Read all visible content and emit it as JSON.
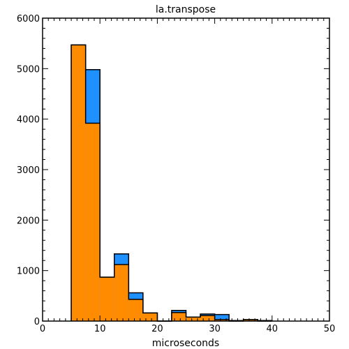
{
  "chart_data": {
    "type": "bar",
    "title": "la.transpose",
    "xlabel": "microseconds",
    "ylabel": "",
    "xlim": [
      0,
      50
    ],
    "ylim": [
      0,
      6000
    ],
    "xticks": [
      0,
      10,
      20,
      30,
      40,
      50
    ],
    "yticks": [
      0,
      1000,
      2000,
      3000,
      4000,
      5000,
      6000
    ],
    "bin_width": 2.5,
    "bin_edges_start": 5,
    "grid": false,
    "legend": "none",
    "series": [
      {
        "color": "#1e90ff",
        "bins": [
          {
            "x0": 5,
            "x1": 7.5,
            "value": 5470
          },
          {
            "x0": 7.5,
            "x1": 10,
            "value": 4980
          },
          {
            "x0": 10,
            "x1": 12.5,
            "value": 870
          },
          {
            "x0": 12.5,
            "x1": 15,
            "value": 1330
          },
          {
            "x0": 15,
            "x1": 17.5,
            "value": 560
          },
          {
            "x0": 17.5,
            "x1": 20,
            "value": 160
          },
          {
            "x0": 20,
            "x1": 22.5,
            "value": 0
          },
          {
            "x0": 22.5,
            "x1": 25,
            "value": 210
          },
          {
            "x0": 25,
            "x1": 27.5,
            "value": 80
          },
          {
            "x0": 27.5,
            "x1": 30,
            "value": 140
          },
          {
            "x0": 30,
            "x1": 32.5,
            "value": 130
          },
          {
            "x0": 32.5,
            "x1": 35,
            "value": 10
          },
          {
            "x0": 35,
            "x1": 37.5,
            "value": 30
          },
          {
            "x0": 37.5,
            "x1": 40,
            "value": 10
          }
        ]
      },
      {
        "color": "#ff8c00",
        "bins": [
          {
            "x0": 5,
            "x1": 7.5,
            "value": 5470
          },
          {
            "x0": 7.5,
            "x1": 10,
            "value": 3920
          },
          {
            "x0": 10,
            "x1": 12.5,
            "value": 870
          },
          {
            "x0": 12.5,
            "x1": 15,
            "value": 1120
          },
          {
            "x0": 15,
            "x1": 17.5,
            "value": 430
          },
          {
            "x0": 17.5,
            "x1": 20,
            "value": 160
          },
          {
            "x0": 20,
            "x1": 22.5,
            "value": 0
          },
          {
            "x0": 22.5,
            "x1": 25,
            "value": 170
          },
          {
            "x0": 25,
            "x1": 27.5,
            "value": 80
          },
          {
            "x0": 27.5,
            "x1": 30,
            "value": 110
          },
          {
            "x0": 30,
            "x1": 32.5,
            "value": 30
          },
          {
            "x0": 32.5,
            "x1": 35,
            "value": 0
          },
          {
            "x0": 35,
            "x1": 37.5,
            "value": 30
          },
          {
            "x0": 37.5,
            "x1": 40,
            "value": 0
          }
        ]
      }
    ]
  }
}
